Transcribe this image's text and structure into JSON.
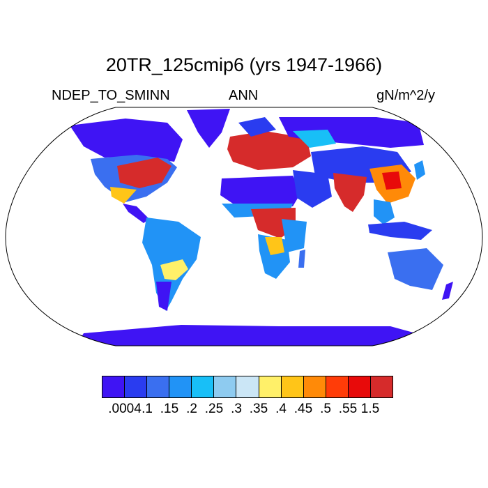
{
  "title": "20TR_125cmip6 (yrs 1947-1966)",
  "left_label": "NDEP_TO_SMINN",
  "center_label": "ANN",
  "right_label": "gN/m^2/y",
  "colorbar": {
    "colors": [
      "#3f14f4",
      "#2a3cf0",
      "#3a6ff0",
      "#2193f6",
      "#18bff7",
      "#8ecbf0",
      "#cbe6f6",
      "#fff069",
      "#ffc518",
      "#ff8a08",
      "#ff3c08",
      "#e80a0a",
      "#d62b2b"
    ],
    "labels": [
      ".0004",
      ".1",
      ".15",
      ".2",
      ".25",
      ".3",
      ".35",
      ".4",
      ".45",
      ".5",
      ".55",
      "1.5"
    ]
  }
}
